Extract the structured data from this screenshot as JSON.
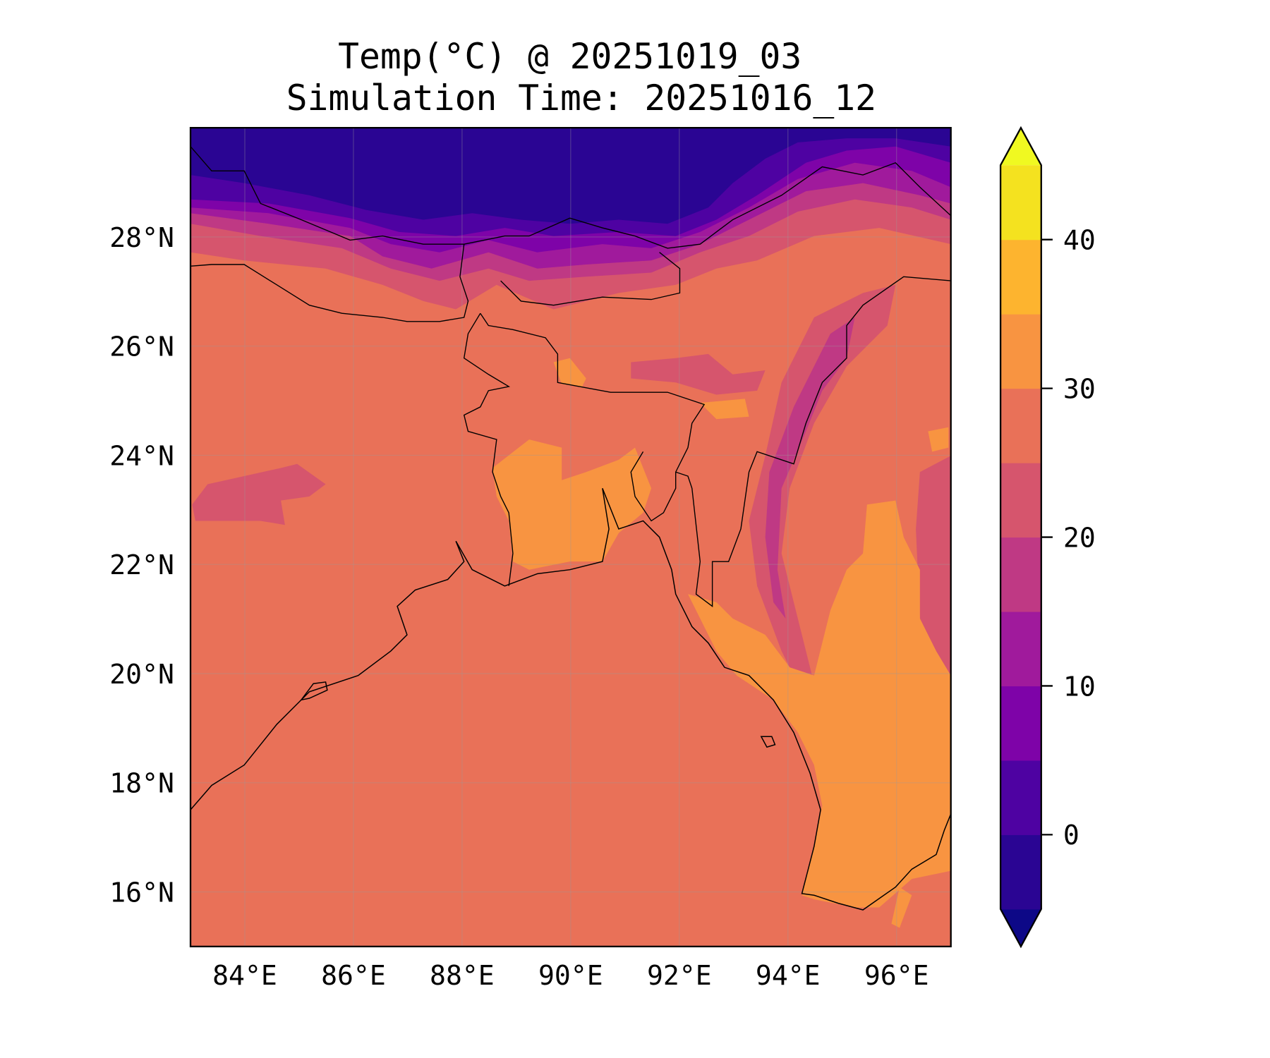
{
  "chart_data": {
    "type": "heatmap",
    "subtype": "filled-contour map",
    "title_line1": "Temp(°C) @ 20251019_03",
    "title_line2": "Simulation Time: 20251016_12",
    "lon_range": [
      83,
      97
    ],
    "lat_range": [
      15,
      30
    ],
    "lon_ticks": [
      84,
      86,
      88,
      90,
      92,
      94,
      96
    ],
    "lon_tick_labels": [
      "84°E",
      "86°E",
      "88°E",
      "90°E",
      "92°E",
      "94°E",
      "96°E"
    ],
    "lat_ticks": [
      16,
      18,
      20,
      22,
      24,
      26,
      28
    ],
    "lat_tick_labels": [
      "16°N",
      "18°N",
      "20°N",
      "22°N",
      "24°N",
      "26°N",
      "28°N"
    ],
    "grid": true,
    "colorbar": {
      "levels": [
        -5,
        0,
        5,
        10,
        15,
        20,
        25,
        30,
        35,
        40,
        45
      ],
      "extend": "both",
      "colors": [
        "#2a0593",
        "#4e02a2",
        "#7e03a8",
        "#a01a9c",
        "#bf3984",
        "#d6556d",
        "#e97158",
        "#f89441",
        "#fdb42f",
        "#f4e21f"
      ],
      "under_color": "#0d0887",
      "over_color": "#f0f921",
      "ticks": [
        0,
        10,
        20,
        30,
        40
      ],
      "tick_labels": [
        "0",
        "10",
        "20",
        "30",
        "40"
      ],
      "placement": "right"
    },
    "summary": {
      "dominant_ocean_range": "25-30",
      "himalaya_range": "-5 to 15",
      "myanmar_lowland_range": "30-35"
    }
  }
}
